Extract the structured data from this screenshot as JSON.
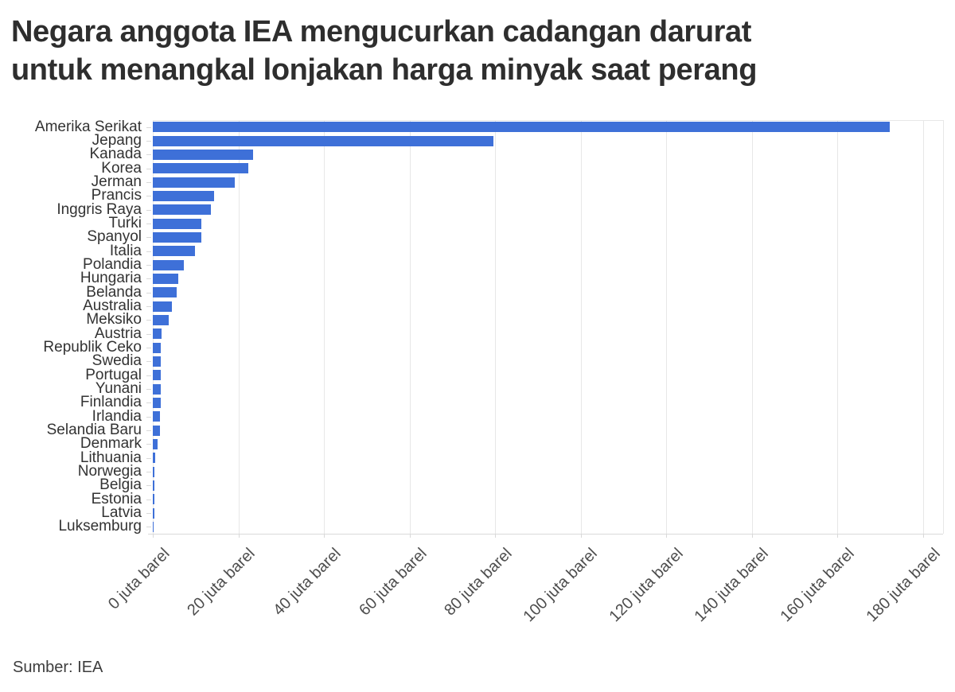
{
  "header": {
    "title_lines": [
      "Negara anggota IEA mengucurkan cadangan darurat",
      "untuk menangkal lonjakan harga minyak saat perang"
    ]
  },
  "footer": {
    "source": "Sumber: IEA"
  },
  "chart_data": {
    "type": "bar",
    "orientation": "horizontal",
    "title": "Negara anggota IEA mengucurkan cadangan darurat untuk menangkal lonjakan harga minyak saat perang",
    "unit": "juta barel",
    "categories": [
      "Amerika Serikat",
      "Jepang",
      "Kanada",
      "Korea",
      "Jerman",
      "Prancis",
      "Inggris Raya",
      "Turki",
      "Spanyol",
      "Italia",
      "Polandia",
      "Hungaria",
      "Belanda",
      "Australia",
      "Meksiko",
      "Austria",
      "Republik Ceko",
      "Swedia",
      "Portugal",
      "Yunani",
      "Finlandia",
      "Irlandia",
      "Selandia Baru",
      "Denmark",
      "Lithuania",
      "Norwegia",
      "Belgia",
      "Estonia",
      "Latvia",
      "Luksemburg"
    ],
    "values": [
      172.3,
      79.6,
      23.4,
      22.3,
      19.2,
      14.4,
      13.6,
      11.4,
      11.4,
      9.9,
      7.3,
      6.0,
      5.5,
      4.5,
      3.7,
      2.1,
      1.9,
      1.8,
      1.8,
      1.8,
      1.8,
      1.7,
      1.7,
      1.2,
      0.6,
      0.3,
      0.3,
      0.3,
      0.3,
      0.05
    ],
    "x_ticks": [
      {
        "value": 0,
        "label": "0 juta barel"
      },
      {
        "value": 20,
        "label": "20 juta barel"
      },
      {
        "value": 40,
        "label": "40 juta barel"
      },
      {
        "value": 60,
        "label": "60 juta barel"
      },
      {
        "value": 80,
        "label": "80 juta barel"
      },
      {
        "value": 100,
        "label": "100 juta barel"
      },
      {
        "value": 120,
        "label": "120 juta barel"
      },
      {
        "value": 140,
        "label": "140 juta barel"
      },
      {
        "value": 160,
        "label": "160 juta barel"
      },
      {
        "value": 180,
        "label": "180 juta barel"
      }
    ],
    "xlim": [
      0,
      184.7
    ],
    "grid": true,
    "legend": "none",
    "bar_color": "#3E70D8",
    "grid_color": "#e7e7e7",
    "axis_line_color": "#d9d9d9",
    "title_color": "#2e2e2e",
    "category_label_color": "#333333",
    "tick_label_color": "#4d4d4d",
    "background_color": "#ffffff"
  }
}
